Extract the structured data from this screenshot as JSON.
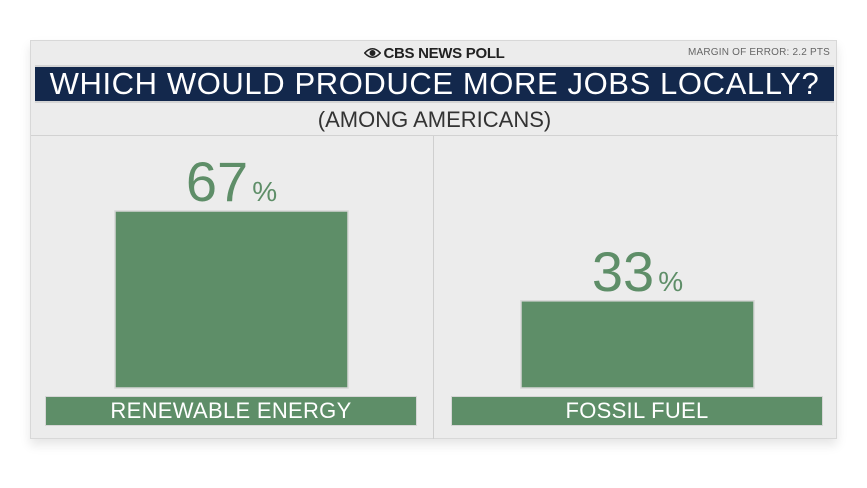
{
  "header": {
    "brand": "CBS NEWS POLL",
    "margin_of_error": "MARGIN OF ERROR: 2.2 PTS"
  },
  "colors": {
    "title_bg": "#13284c",
    "bar": "#5e8e68",
    "value_text": "#5e8e68"
  },
  "chart_data": {
    "type": "bar",
    "title": "WHICH WOULD PRODUCE MORE JOBS LOCALLY?",
    "subtitle": "(AMONG AMERICANS)",
    "categories": [
      "RENEWABLE ENERGY",
      "FOSSIL FUEL"
    ],
    "values": [
      67,
      33
    ],
    "value_suffix": "%",
    "ylim": [
      0,
      67
    ],
    "xlabel": "",
    "ylabel": "",
    "grid": false
  }
}
